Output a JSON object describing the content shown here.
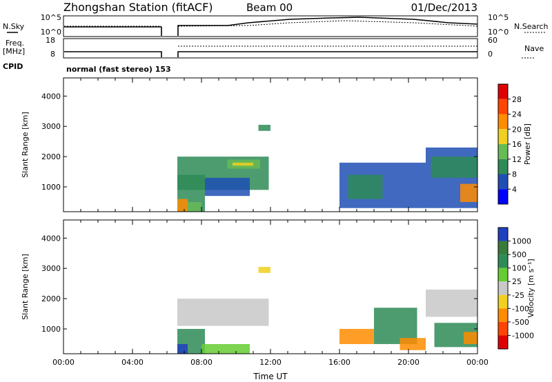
{
  "header": {
    "title": "Zhongshan Station (fitACF)",
    "beam": "Beam 00",
    "date": "01/Dec/2013"
  },
  "panels": {
    "nsky": {
      "left_label": "N.Sky",
      "left_ticks": [
        "10^5",
        "10^0"
      ],
      "right_label": "N.Search",
      "right_ticks": [
        "10^5",
        "10^0"
      ]
    },
    "freq": {
      "left_label": "Freq.",
      "left_unit": "[MHz]",
      "left_ticks": [
        "18",
        "8"
      ],
      "right_label": "Nave",
      "right_ticks": [
        "60",
        "0"
      ]
    },
    "cpid": {
      "label": "CPID",
      "text": "normal (fast stereo) 153"
    }
  },
  "chart_data": [
    {
      "type": "heatmap",
      "title": "",
      "xlabel": "",
      "ylabel": "Slant Range [km]",
      "xlim": [
        0,
        24
      ],
      "ylim": [
        180,
        4600
      ],
      "ytick_labels": [
        "1000",
        "2000",
        "3000",
        "4000"
      ],
      "colorbar": {
        "label": "Power [dB]",
        "tick_labels": [
          "4",
          "8",
          "12",
          "16",
          "20",
          "24",
          "28"
        ],
        "colors": [
          "#0000ff",
          "#1f4fb4",
          "#2e8b57",
          "#66bb55",
          "#f0d020",
          "#ff8c00",
          "#ff4500",
          "#e00000"
        ]
      },
      "regions": [
        {
          "t0": 6.6,
          "t1": 11.9,
          "r0": 900,
          "r1": 2000,
          "level": 2
        },
        {
          "t0": 9.5,
          "t1": 11.4,
          "r0": 1600,
          "r1": 1900,
          "level": 3
        },
        {
          "t0": 9.8,
          "t1": 11.0,
          "r0": 1700,
          "r1": 1800,
          "level": 4
        },
        {
          "t0": 6.6,
          "t1": 8.2,
          "r0": 180,
          "r1": 1400,
          "level": 2
        },
        {
          "t0": 6.6,
          "t1": 7.2,
          "r0": 180,
          "r1": 600,
          "level": 5
        },
        {
          "t0": 7.2,
          "t1": 8.0,
          "r0": 180,
          "r1": 500,
          "level": 3
        },
        {
          "t0": 8.2,
          "t1": 10.8,
          "r0": 700,
          "r1": 1300,
          "level": 1
        },
        {
          "t0": 11.3,
          "t1": 12.0,
          "r0": 2850,
          "r1": 3050,
          "level": 2
        },
        {
          "t0": 16.0,
          "t1": 21.0,
          "r0": 300,
          "r1": 1800,
          "level": 1
        },
        {
          "t0": 16.5,
          "t1": 18.5,
          "r0": 600,
          "r1": 1400,
          "level": 2
        },
        {
          "t0": 21.0,
          "t1": 24.0,
          "r0": 300,
          "r1": 2300,
          "level": 1
        },
        {
          "t0": 21.3,
          "t1": 24.0,
          "r0": 1300,
          "r1": 2000,
          "level": 2
        },
        {
          "t0": 23.0,
          "t1": 24.0,
          "r0": 500,
          "r1": 1100,
          "level": 5
        }
      ]
    },
    {
      "type": "heatmap",
      "title": "",
      "xlabel": "Time UT",
      "ylabel": "Slant Range [km]",
      "xlim": [
        0,
        24
      ],
      "ylim": [
        180,
        4600
      ],
      "xtick_labels": [
        "00:00",
        "04:00",
        "08:00",
        "12:00",
        "16:00",
        "20:00",
        "00:00"
      ],
      "ytick_labels": [
        "1000",
        "2000",
        "3000",
        "4000"
      ],
      "colorbar": {
        "label": "Velocity [m s^-1]",
        "tick_labels": [
          "1000",
          "500",
          "100",
          "25",
          "-25",
          "-100",
          "-500",
          "-1000"
        ],
        "colors": [
          "#2040c0",
          "#3a7a3a",
          "#2e8b57",
          "#66cc33",
          "#c8c8c8",
          "#f0d020",
          "#ff8c00",
          "#ff4500",
          "#e00000"
        ]
      },
      "regions": [
        {
          "t0": 6.6,
          "t1": 11.9,
          "r0": 1100,
          "r1": 2000,
          "level": 4
        },
        {
          "t0": 6.6,
          "t1": 8.2,
          "r0": 180,
          "r1": 1000,
          "level": 2
        },
        {
          "t0": 6.6,
          "t1": 7.2,
          "r0": 180,
          "r1": 500,
          "level": 0
        },
        {
          "t0": 8.0,
          "t1": 10.8,
          "r0": 180,
          "r1": 500,
          "level": 3
        },
        {
          "t0": 11.3,
          "t1": 12.0,
          "r0": 2850,
          "r1": 3050,
          "level": 5
        },
        {
          "t0": 16.0,
          "t1": 18.0,
          "r0": 500,
          "r1": 1000,
          "level": 6
        },
        {
          "t0": 18.0,
          "t1": 20.5,
          "r0": 500,
          "r1": 1700,
          "level": 2
        },
        {
          "t0": 19.5,
          "t1": 21.0,
          "r0": 300,
          "r1": 700,
          "level": 6
        },
        {
          "t0": 21.0,
          "t1": 24.0,
          "r0": 1400,
          "r1": 2300,
          "level": 4
        },
        {
          "t0": 21.5,
          "t1": 24.0,
          "r0": 400,
          "r1": 1200,
          "level": 2
        },
        {
          "t0": 23.2,
          "t1": 24.0,
          "r0": 500,
          "r1": 900,
          "level": 6
        }
      ]
    }
  ]
}
